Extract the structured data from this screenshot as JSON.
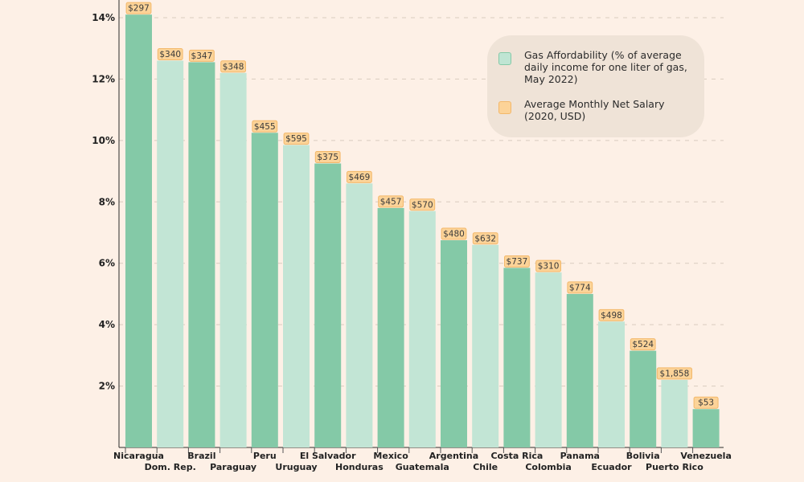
{
  "colors": {
    "background": "#fdf0e6",
    "bar_dark": "#84c9a7",
    "bar_light": "#c2e5d5",
    "label_bg": "#fcd398",
    "label_border": "#f3b86a",
    "grid": "#d9cbbf",
    "text": "#222222",
    "legend_bg": "#efe3d7"
  },
  "legend": [
    {
      "label": "Gas Affordability (% of average daily income for one liter of gas, May 2022)",
      "swatch_color": "#bfe5d3",
      "border_color": "#84c9a7"
    },
    {
      "label": "Average Monthly Net Salary (2020, USD)",
      "swatch_color": "#fcd398",
      "border_color": "#f3b86a"
    }
  ],
  "chart_data": {
    "type": "bar",
    "title": "",
    "xlabel": "",
    "ylabel": "",
    "ylim": [
      0,
      14
    ],
    "y_ticks": [
      2,
      4,
      6,
      8,
      10,
      12,
      14
    ],
    "y_tick_labels": [
      "2%",
      "4%",
      "6%",
      "8%",
      "10%",
      "12%",
      "14%"
    ],
    "grid": true,
    "legend_position": "top-right",
    "categories": [
      "Nicaragua",
      "Dom. Rep.",
      "Brazil",
      "Paraguay",
      "Peru",
      "Uruguay",
      "El Salvador",
      "Honduras",
      "Mexico",
      "Guatemala",
      "Argentina",
      "Chile",
      "Costa Rica",
      "Colombia",
      "Panama",
      "Ecuador",
      "Bolivia",
      "Puerto Rico",
      "Venezuela"
    ],
    "series": [
      {
        "name": "Gas Affordability (% of average daily income for one liter of gas, May 2022)",
        "values": [
          14.1,
          12.6,
          12.55,
          12.2,
          10.25,
          9.85,
          9.25,
          8.6,
          7.8,
          7.7,
          6.75,
          6.6,
          5.85,
          5.7,
          5.0,
          4.1,
          3.15,
          2.2,
          1.25
        ]
      }
    ],
    "salary_labels": [
      "$297",
      "$340",
      "$347",
      "$348",
      "$455",
      "$595",
      "$375",
      "$469",
      "$457",
      "$570",
      "$480",
      "$632",
      "$737",
      "$310",
      "$774",
      "$498",
      "$524",
      "$1,858",
      "$53"
    ]
  }
}
